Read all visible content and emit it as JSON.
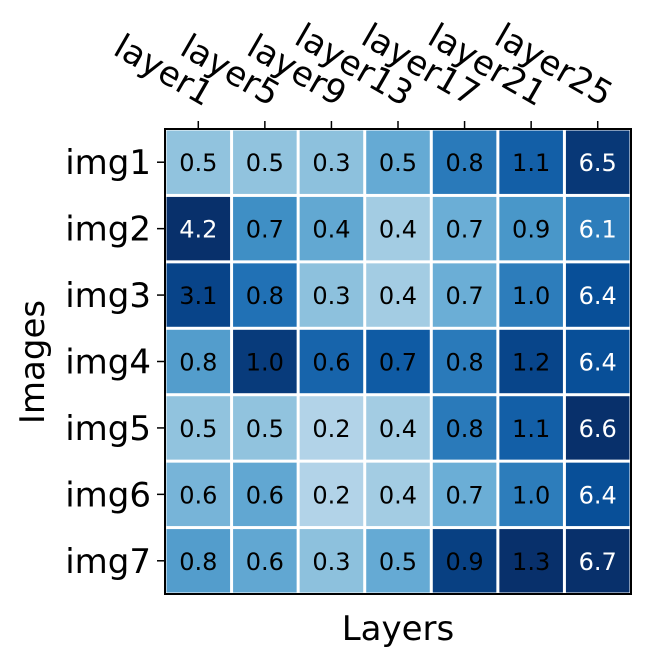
{
  "chart_data": {
    "type": "heatmap",
    "title": "",
    "xlabel": "Layers",
    "ylabel": "Images",
    "x_categories": [
      "layer1",
      "layer5",
      "layer9",
      "layer13",
      "layer17",
      "layer21",
      "layer25"
    ],
    "y_categories": [
      "img1",
      "img2",
      "img3",
      "img4",
      "img5",
      "img6",
      "img7"
    ],
    "values": [
      [
        0.5,
        0.5,
        0.3,
        0.5,
        0.8,
        1.1,
        6.5
      ],
      [
        4.2,
        0.7,
        0.4,
        0.4,
        0.7,
        0.9,
        6.1
      ],
      [
        3.1,
        0.8,
        0.3,
        0.4,
        0.7,
        1.0,
        6.4
      ],
      [
        0.8,
        1.0,
        0.6,
        0.7,
        0.8,
        1.2,
        6.4
      ],
      [
        0.5,
        0.5,
        0.2,
        0.4,
        0.8,
        1.1,
        6.6
      ],
      [
        0.6,
        0.6,
        0.2,
        0.4,
        0.7,
        1.0,
        6.4
      ],
      [
        0.8,
        0.6,
        0.3,
        0.5,
        0.9,
        1.3,
        6.7
      ]
    ],
    "colormap": "Blues",
    "color_scale": "per-column",
    "grid": false,
    "x_tick_position": "top",
    "x_tick_rotation_deg": -30
  },
  "colors": {
    "cell_border": "#ffffff",
    "frame": "#000000",
    "text_dark": "#000000",
    "text_light": "#ffffff"
  }
}
